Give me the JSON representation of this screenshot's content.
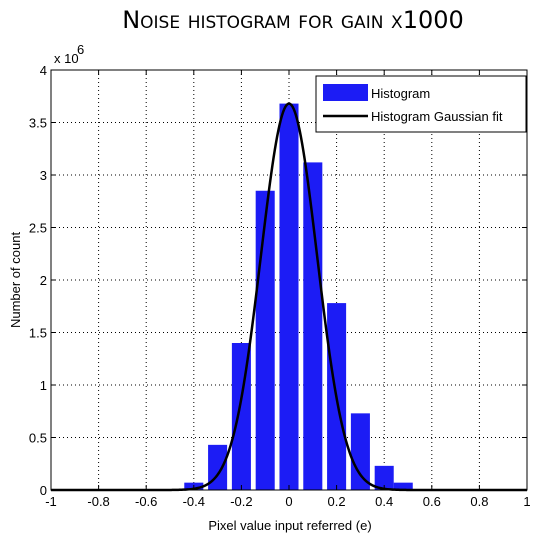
{
  "chart_data": {
    "type": "bar",
    "title": "Noise histogram for gain x1000",
    "xlabel": "Pixel value input referred (e)",
    "ylabel": "Number of count",
    "y_multiplier_label": "x 10",
    "y_multiplier_exponent": "6",
    "xlim": [
      -1,
      1
    ],
    "ylim": [
      0,
      4
    ],
    "xticks": [
      -1,
      -0.8,
      -0.6,
      -0.4,
      -0.2,
      0,
      0.2,
      0.4,
      0.6,
      0.8,
      1
    ],
    "xtick_labels": [
      "-1",
      "-0.8",
      "-0.6",
      "-0.4",
      "-0.2",
      "0",
      "0.2",
      "0.4",
      "0.6",
      "0.8",
      "1"
    ],
    "yticks": [
      0,
      0.5,
      1,
      1.5,
      2,
      2.5,
      3,
      3.5,
      4
    ],
    "ytick_labels": [
      "0",
      "0.5",
      "1",
      "1.5",
      "2",
      "2.5",
      "3",
      "3.5",
      "4"
    ],
    "grid": true,
    "legend_position": "top-right",
    "bar_width": 0.08,
    "series": [
      {
        "name": "Histogram",
        "kind": "bar",
        "color": "#1c1cf5",
        "x": [
          -0.4,
          -0.3,
          -0.2,
          -0.1,
          0.0,
          0.1,
          0.2,
          0.3,
          0.4
        ],
        "values": [
          0.07,
          0.43,
          1.4,
          2.85,
          3.68,
          3.12,
          1.78,
          0.73,
          0.23
        ]
      },
      {
        "name": "Histogram Gaussian fit",
        "kind": "line",
        "color": "#000000",
        "gaussian": {
          "amplitude": 3.68,
          "mean": 0.0,
          "sigma": 0.118
        }
      }
    ],
    "extra_bars": {
      "x": [
        0.48
      ],
      "values": [
        0.07
      ]
    }
  }
}
